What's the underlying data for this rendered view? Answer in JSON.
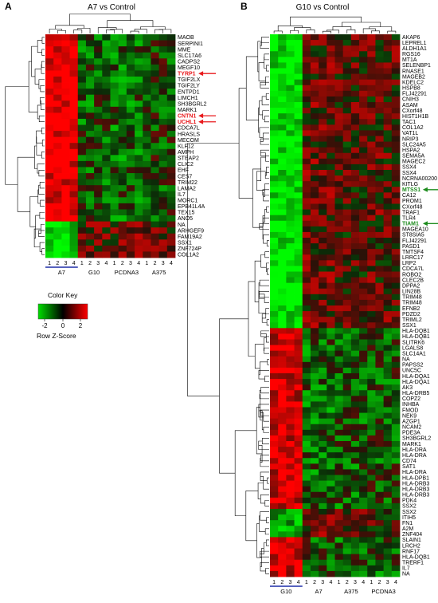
{
  "panels": [
    {
      "letter": "A",
      "title": "A7 vs Control",
      "genes": [
        "MAOB",
        "SERPINI1",
        "MME",
        "SLC17A6",
        "CADPS2",
        "MEGF10",
        "TYRP1",
        "TGIF2LX",
        "TGIF2LY",
        "ENTPD1",
        "LIMCH1",
        "SH3BGRL2",
        "MARK1",
        "CNTN1",
        "UCHL1",
        "CDCA7L",
        "HRASLS",
        "MECOM",
        "KLF12",
        "AMPH",
        "STEAP2",
        "CLIC2",
        "EHF",
        "CES7",
        "TRIM22",
        "LAMA2",
        "IL7",
        "MORC1",
        "EPB41L4A",
        "TEX15",
        "ANO5",
        "NA",
        "ARHGEF9",
        "FAM19A2",
        "SSX1",
        "ZNF724P",
        "COL1A2"
      ],
      "highlighted": [
        "TYRP1",
        "CNTN1",
        "UCHL1"
      ],
      "highlight_color": "#e8191c",
      "groups": [
        {
          "label": "A7",
          "replicates": [
            "1",
            "2",
            "3",
            "4"
          ]
        },
        {
          "label": "G10",
          "replicates": [
            "1",
            "2",
            "3",
            "4"
          ]
        },
        {
          "label": "PCDNA3",
          "replicates": [
            "1",
            "2",
            "3",
            "4"
          ]
        },
        {
          "label": "A375",
          "replicates": [
            "1",
            "2",
            "3",
            "4"
          ]
        }
      ],
      "underlined_group": "A7",
      "underline_color": "#1f2fa8"
    },
    {
      "letter": "B",
      "title": "G10 vs Control",
      "genes": [
        "AKAP6",
        "LEPREL1",
        "ALDH1A1",
        "RGS16",
        "MT1A",
        "SELENBP1",
        "RNASE1",
        "MAGEB2",
        "KDELC2",
        "HSPB8",
        "FLJ42291",
        "CNIH3",
        "ASAM",
        "CXorf48",
        "HIST1H1B",
        "TAC1",
        "COL1A2",
        "VAT1L",
        "NRIP3",
        "SLC24A5",
        "HSPA2",
        "SEMA5A",
        "MAGEC2",
        "SSX4",
        "SSX4",
        "NCRNA00200",
        "KITLG",
        "MTSS1",
        "CA12",
        "PROM1",
        "CXorf48",
        "TRAF1",
        "TLR4",
        "TIAM1",
        "MAGEA10",
        "ST8SIA5",
        "FLJ42291",
        "PASD1",
        "TMTSF4",
        "LRRC17",
        "LRP2",
        "CDCA7L",
        "ROBO2",
        "CLEC2B",
        "DPPA2",
        "LIN28B",
        "TRIM48",
        "TRIM48",
        "EFNB2",
        "PDZD2",
        "TRIML2",
        "SSX1",
        "HLA-DQB1",
        "HLA-DQB1",
        "SLITRK6",
        "LGALS8",
        "SLC14A1",
        "NA",
        "PAPSS2",
        "UNC5C",
        "HLA-DQA1",
        "HLA-DQA1",
        "AK3",
        "HLA-DRB5",
        "COPZ2",
        "INHBA",
        "FMOD",
        "NEK9",
        "AZGP1",
        "NCAM2",
        "PDE3A",
        "SH3BGRL2",
        "MARK1",
        "HLA-DRA",
        "HLA-DRA",
        "CD74",
        "SAT1",
        "HLA-DRA",
        "HLA-DPB1",
        "HLA-DRB3",
        "HLA-DRB3",
        "HLA-DRB3",
        "PDK4",
        "SSX2",
        "SSX2",
        "ITIH5",
        "FN1",
        "A2M",
        "ZNF404",
        "SLAIN1",
        "LRCH2",
        "RNF17",
        "HLA-DQB1",
        "TRERF1",
        "IL7",
        "NA"
      ],
      "highlighted": [
        "MTSS1",
        "TIAM1"
      ],
      "highlight_color": "#1e8c1e",
      "groups": [
        {
          "label": "G10",
          "replicates": [
            "1",
            "2",
            "3",
            "4"
          ]
        },
        {
          "label": "A7",
          "replicates": [
            "1",
            "2",
            "3",
            "4"
          ]
        },
        {
          "label": "A375",
          "replicates": [
            "1",
            "2",
            "3",
            "4"
          ]
        },
        {
          "label": "PCDNA3",
          "replicates": [
            "1",
            "2",
            "3",
            "4"
          ]
        }
      ],
      "underlined_group": "G10",
      "underline_color": "#1f2fa8"
    }
  ],
  "color_key": {
    "title": "Color Key",
    "ticks": [
      "-2",
      "0",
      "2"
    ],
    "label": "Row Z-Score",
    "low_color": "#00dd00",
    "mid_color": "#000000",
    "high_color": "#ff0000"
  }
}
